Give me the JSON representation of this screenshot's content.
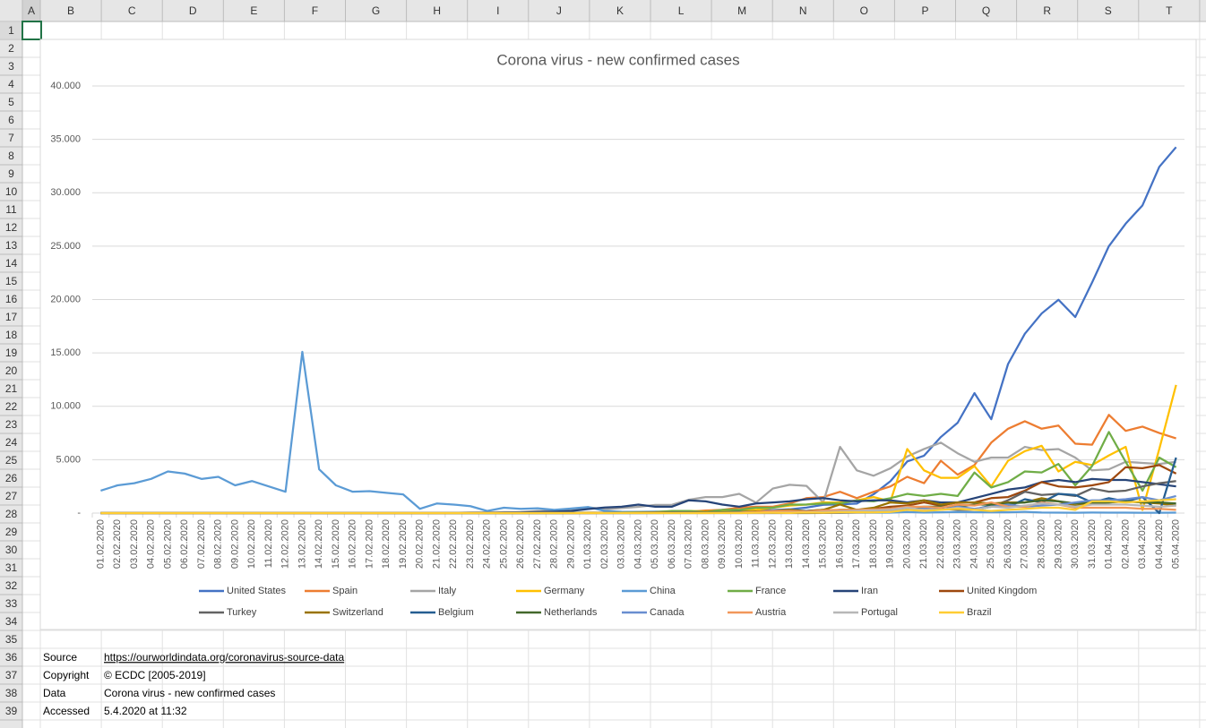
{
  "columns": [
    "A",
    "B",
    "C",
    "D",
    "E",
    "F",
    "G",
    "H",
    "I",
    "J",
    "K",
    "L",
    "M",
    "N",
    "O",
    "P",
    "Q",
    "R",
    "S",
    "T"
  ],
  "rows": [
    1,
    2,
    3,
    4,
    5,
    6,
    7,
    8,
    9,
    10,
    11,
    12,
    13,
    14,
    15,
    16,
    17,
    18,
    19,
    20,
    21,
    22,
    23,
    24,
    25,
    26,
    27,
    28,
    29,
    30,
    31,
    32,
    33,
    34,
    35,
    36,
    37,
    38,
    39
  ],
  "cells": [
    {
      "label": "Source",
      "value": "https://ourworldindata.org/coronavirus-source-data"
    },
    {
      "label": "Copyright",
      "value": "© ECDC [2005-2019]"
    },
    {
      "label": "Data",
      "value": "Corona virus - new confirmed cases"
    },
    {
      "label": "Accessed",
      "value": "5.4.2020 at 11:32"
    }
  ],
  "chart_data": {
    "type": "line",
    "title": "Corona virus - new confirmed cases",
    "categories": [
      "01.02.2020",
      "02.02.2020",
      "03.02.2020",
      "04.02.2020",
      "05.02.2020",
      "06.02.2020",
      "07.02.2020",
      "08.02.2020",
      "09.02.2020",
      "10.02.2020",
      "11.02.2020",
      "12.02.2020",
      "13.02.2020",
      "14.02.2020",
      "15.02.2020",
      "16.02.2020",
      "17.02.2020",
      "18.02.2020",
      "19.02.2020",
      "20.02.2020",
      "21.02.2020",
      "22.02.2020",
      "23.02.2020",
      "24.02.2020",
      "25.02.2020",
      "26.02.2020",
      "27.02.2020",
      "28.02.2020",
      "29.02.2020",
      "01.03.2020",
      "02.03.2020",
      "03.03.2020",
      "04.03.2020",
      "05.03.2020",
      "06.03.2020",
      "07.03.2020",
      "08.03.2020",
      "09.03.2020",
      "10.03.2020",
      "11.03.2020",
      "12.03.2020",
      "13.03.2020",
      "14.03.2020",
      "15.03.2020",
      "16.03.2020",
      "17.03.2020",
      "18.03.2020",
      "19.03.2020",
      "20.03.2020",
      "21.03.2020",
      "22.03.2020",
      "23.03.2020",
      "24.03.2020",
      "25.03.2020",
      "26.03.2020",
      "27.03.2020",
      "28.03.2020",
      "29.03.2020",
      "30.03.2020",
      "31.03.2020",
      "01.04.2020",
      "02.04.2020",
      "03.04.2020",
      "04.04.2020",
      "05.04.2020"
    ],
    "ylim": [
      0,
      40000
    ],
    "yticks": [
      {
        "value": 0,
        "label": "-"
      },
      {
        "value": 5000,
        "label": "5.000"
      },
      {
        "value": 10000,
        "label": "10.000"
      },
      {
        "value": 15000,
        "label": "15.000"
      },
      {
        "value": 20000,
        "label": "20.000"
      },
      {
        "value": 25000,
        "label": "25.000"
      },
      {
        "value": 30000,
        "label": "30.000"
      },
      {
        "value": 35000,
        "label": "35.000"
      },
      {
        "value": 40000,
        "label": "40.000"
      }
    ],
    "grid": true,
    "legend": "bottom",
    "series": [
      {
        "name": "United States",
        "color": "#4472c4",
        "values": [
          1,
          0,
          3,
          0,
          0,
          0,
          0,
          0,
          0,
          0,
          0,
          0,
          1,
          0,
          0,
          0,
          0,
          0,
          0,
          0,
          1,
          0,
          0,
          0,
          0,
          0,
          0,
          0,
          6,
          3,
          20,
          14,
          22,
          34,
          74,
          105,
          95,
          121,
          200,
          271,
          287,
          351,
          511,
          777,
          823,
          887,
          1766,
          2988,
          4835,
          5374,
          7123,
          8459,
          11236,
          8789,
          13963,
          16797,
          18695,
          19979,
          18360,
          21595,
          24998,
          27103,
          28819,
          32425,
          34272
        ]
      },
      {
        "name": "Spain",
        "color": "#ed7d31",
        "values": [
          1,
          0,
          0,
          0,
          0,
          0,
          0,
          0,
          0,
          0,
          0,
          0,
          0,
          0,
          0,
          0,
          0,
          0,
          0,
          0,
          0,
          0,
          0,
          0,
          0,
          0,
          0,
          0,
          0,
          30,
          40,
          40,
          50,
          60,
          100,
          130,
          240,
          300,
          500,
          600,
          600,
          900,
          1400,
          1500,
          2000,
          1400,
          2000,
          2500,
          3400,
          2800,
          4900,
          3600,
          4500,
          6600,
          7900,
          8600,
          7900,
          8200,
          6500,
          6400,
          9200,
          7700,
          8100,
          7500,
          7000
        ]
      },
      {
        "name": "Italy",
        "color": "#a5a5a5",
        "values": [
          2,
          0,
          0,
          0,
          0,
          0,
          0,
          0,
          0,
          0,
          0,
          0,
          0,
          0,
          0,
          0,
          0,
          0,
          0,
          0,
          0,
          15,
          60,
          70,
          90,
          100,
          200,
          230,
          240,
          560,
          350,
          470,
          590,
          770,
          780,
          1250,
          1500,
          1500,
          1800,
          980,
          2300,
          2650,
          2550,
          1000,
          6200,
          4000,
          3500,
          4200,
          5300,
          6000,
          6600,
          5600,
          4800,
          5200,
          5200,
          6200,
          5900,
          6000,
          5200,
          4000,
          4100,
          4800,
          4700,
          4600,
          4800
        ]
      },
      {
        "name": "Germany",
        "color": "#ffc000",
        "values": [
          0,
          1,
          0,
          2,
          1,
          1,
          0,
          0,
          0,
          0,
          1,
          0,
          0,
          0,
          0,
          0,
          0,
          0,
          0,
          0,
          0,
          0,
          0,
          0,
          0,
          0,
          1,
          5,
          20,
          50,
          30,
          50,
          60,
          100,
          150,
          200,
          150,
          250,
          300,
          300,
          500,
          700,
          800,
          1000,
          1000,
          1200,
          1500,
          1100,
          6000,
          4000,
          3300,
          3300,
          4400,
          2500,
          4900,
          5800,
          6300,
          3900,
          4800,
          4500,
          5400,
          6200,
          300,
          6000,
          12000
        ]
      },
      {
        "name": "China",
        "color": "#5b9bd5",
        "values": [
          2100,
          2600,
          2800,
          3200,
          3900,
          3700,
          3200,
          3400,
          2600,
          3000,
          2500,
          2000,
          15100,
          4100,
          2600,
          2000,
          2050,
          1900,
          1750,
          400,
          900,
          800,
          650,
          200,
          500,
          400,
          450,
          300,
          430,
          570,
          200,
          125,
          120,
          140,
          140,
          100,
          45,
          40,
          20,
          25,
          15,
          10,
          20,
          20,
          30,
          40,
          30,
          40,
          100,
          50,
          70,
          100,
          80,
          70,
          70,
          120,
          50,
          40,
          30,
          50,
          40,
          40,
          35,
          30,
          40
        ]
      },
      {
        "name": "France",
        "color": "#70ad47",
        "values": [
          0,
          0,
          0,
          0,
          0,
          0,
          0,
          0,
          0,
          0,
          0,
          0,
          0,
          0,
          0,
          0,
          0,
          0,
          0,
          0,
          0,
          0,
          0,
          0,
          0,
          0,
          2,
          20,
          40,
          30,
          30,
          50,
          80,
          90,
          200,
          200,
          100,
          300,
          300,
          500,
          500,
          800,
          800,
          900,
          900,
          1200,
          1100,
          1400,
          1800,
          1600,
          1800,
          1600,
          3800,
          2400,
          2900,
          3900,
          3800,
          4600,
          2600,
          4400,
          7600,
          4800,
          2100,
          5200,
          4300
        ]
      },
      {
        "name": "Iran",
        "color": "#264478",
        "values": [
          0,
          0,
          0,
          0,
          0,
          0,
          0,
          0,
          0,
          0,
          0,
          0,
          0,
          0,
          0,
          0,
          0,
          0,
          0,
          2,
          3,
          10,
          15,
          20,
          50,
          60,
          100,
          140,
          200,
          380,
          520,
          600,
          800,
          600,
          600,
          1200,
          1100,
          800,
          600,
          900,
          1000,
          1100,
          1300,
          1400,
          1200,
          1100,
          1200,
          1200,
          1000,
          1200,
          1000,
          1000,
          1400,
          1800,
          2200,
          2400,
          2900,
          3100,
          2900,
          3200,
          3100,
          3100,
          2900,
          2700,
          2500
        ]
      },
      {
        "name": "United Kingdom",
        "color": "#9e480e",
        "values": [
          0,
          0,
          0,
          0,
          0,
          0,
          0,
          0,
          0,
          0,
          0,
          0,
          0,
          0,
          0,
          0,
          0,
          0,
          0,
          0,
          0,
          0,
          0,
          0,
          0,
          0,
          0,
          0,
          0,
          10,
          10,
          20,
          40,
          50,
          40,
          50,
          60,
          50,
          60,
          80,
          130,
          200,
          200,
          300,
          200,
          300,
          400,
          600,
          700,
          1000,
          700,
          1000,
          1000,
          1400,
          1500,
          2100,
          2900,
          2500,
          2400,
          2600,
          2900,
          4300,
          4200,
          4500,
          3700
        ]
      },
      {
        "name": "Turkey",
        "color": "#636363",
        "values": [
          0,
          0,
          0,
          0,
          0,
          0,
          0,
          0,
          0,
          0,
          0,
          0,
          0,
          0,
          0,
          0,
          0,
          0,
          0,
          0,
          0,
          0,
          0,
          0,
          0,
          0,
          0,
          0,
          0,
          0,
          0,
          0,
          0,
          0,
          0,
          0,
          0,
          0,
          0,
          1,
          0,
          4,
          1,
          12,
          29,
          51,
          93,
          168,
          359,
          300,
          400,
          300,
          300,
          600,
          1200,
          2000,
          1700,
          1800,
          1600,
          2300,
          2000,
          2100,
          2500,
          2800,
          3000
        ]
      },
      {
        "name": "Switzerland",
        "color": "#997300",
        "values": [
          0,
          0,
          0,
          0,
          0,
          0,
          0,
          0,
          0,
          0,
          0,
          0,
          0,
          0,
          0,
          0,
          0,
          0,
          0,
          0,
          0,
          0,
          0,
          0,
          0,
          1,
          0,
          7,
          10,
          10,
          10,
          20,
          30,
          50,
          60,
          70,
          100,
          50,
          100,
          150,
          200,
          300,
          200,
          300,
          800,
          300,
          500,
          1000,
          900,
          1200,
          800,
          1000,
          1000,
          900,
          1000,
          1000,
          1400,
          1100,
          700,
          900,
          1000,
          1100,
          1000,
          900,
          700
        ]
      },
      {
        "name": "Belgium",
        "color": "#255e91",
        "values": [
          0,
          0,
          0,
          0,
          0,
          0,
          0,
          0,
          0,
          0,
          0,
          0,
          0,
          0,
          0,
          0,
          0,
          0,
          0,
          0,
          0,
          0,
          0,
          0,
          0,
          0,
          0,
          0,
          0,
          0,
          0,
          2,
          5,
          10,
          60,
          60,
          30,
          50,
          100,
          100,
          150,
          150,
          200,
          200,
          170,
          200,
          250,
          250,
          460,
          550,
          600,
          600,
          350,
          700,
          600,
          1300,
          1000,
          1800,
          1700,
          1000,
          1400,
          1100,
          1500,
          0,
          5200
        ]
      },
      {
        "name": "Netherlands",
        "color": "#43682b",
        "values": [
          0,
          0,
          0,
          0,
          0,
          0,
          0,
          0,
          0,
          0,
          0,
          0,
          0,
          0,
          0,
          0,
          0,
          0,
          0,
          0,
          0,
          0,
          0,
          0,
          0,
          0,
          0,
          1,
          1,
          5,
          10,
          10,
          20,
          40,
          50,
          60,
          70,
          80,
          90,
          100,
          150,
          200,
          150,
          200,
          300,
          300,
          300,
          400,
          500,
          600,
          600,
          600,
          800,
          800,
          900,
          1000,
          1200,
          1100,
          900,
          1000,
          1000,
          1100,
          1000,
          1000,
          900
        ]
      },
      {
        "name": "Canada",
        "color": "#698ed0",
        "values": [
          0,
          0,
          0,
          0,
          0,
          0,
          0,
          0,
          0,
          0,
          0,
          0,
          0,
          0,
          0,
          0,
          0,
          0,
          0,
          0,
          0,
          0,
          0,
          0,
          0,
          0,
          0,
          0,
          0,
          5,
          5,
          5,
          5,
          5,
          10,
          10,
          10,
          20,
          20,
          30,
          50,
          50,
          100,
          100,
          100,
          100,
          200,
          200,
          300,
          400,
          300,
          600,
          400,
          600,
          800,
          600,
          700,
          800,
          1000,
          1200,
          1200,
          1300,
          1500,
          1200,
          1600
        ]
      },
      {
        "name": "Austria",
        "color": "#f1975a",
        "values": [
          0,
          0,
          0,
          0,
          0,
          0,
          0,
          0,
          0,
          0,
          0,
          0,
          0,
          0,
          0,
          0,
          0,
          0,
          0,
          0,
          0,
          0,
          0,
          0,
          0,
          2,
          0,
          1,
          1,
          5,
          5,
          10,
          10,
          20,
          10,
          20,
          30,
          30,
          50,
          100,
          200,
          200,
          150,
          250,
          300,
          300,
          350,
          400,
          600,
          600,
          500,
          800,
          700,
          1000,
          600,
          600,
          1000,
          800,
          500,
          500,
          500,
          500,
          400,
          400,
          300
        ]
      },
      {
        "name": "Portugal",
        "color": "#b7b7b7",
        "values": [
          0,
          0,
          0,
          0,
          0,
          0,
          0,
          0,
          0,
          0,
          0,
          0,
          0,
          0,
          0,
          0,
          0,
          0,
          0,
          0,
          0,
          0,
          0,
          0,
          0,
          0,
          0,
          0,
          0,
          0,
          2,
          2,
          2,
          4,
          5,
          5,
          10,
          10,
          20,
          20,
          40,
          40,
          60,
          100,
          150,
          200,
          250,
          300,
          500,
          300,
          300,
          500,
          300,
          600,
          500,
          700,
          900,
          800,
          600,
          800,
          800,
          800,
          700,
          600,
          700
        ]
      },
      {
        "name": "Brazil",
        "color": "#ffcd33",
        "values": [
          0,
          0,
          0,
          0,
          0,
          0,
          0,
          0,
          0,
          0,
          0,
          0,
          0,
          0,
          0,
          0,
          0,
          0,
          0,
          0,
          0,
          0,
          0,
          0,
          0,
          1,
          0,
          0,
          0,
          1,
          0,
          0,
          0,
          0,
          3,
          5,
          0,
          7,
          5,
          30,
          30,
          10,
          50,
          30,
          70,
          70,
          60,
          100,
          300,
          200,
          300,
          400,
          300,
          200,
          300,
          400,
          500,
          500,
          300,
          1100,
          1100,
          1000,
          1100,
          1200,
          1300
        ]
      }
    ]
  }
}
